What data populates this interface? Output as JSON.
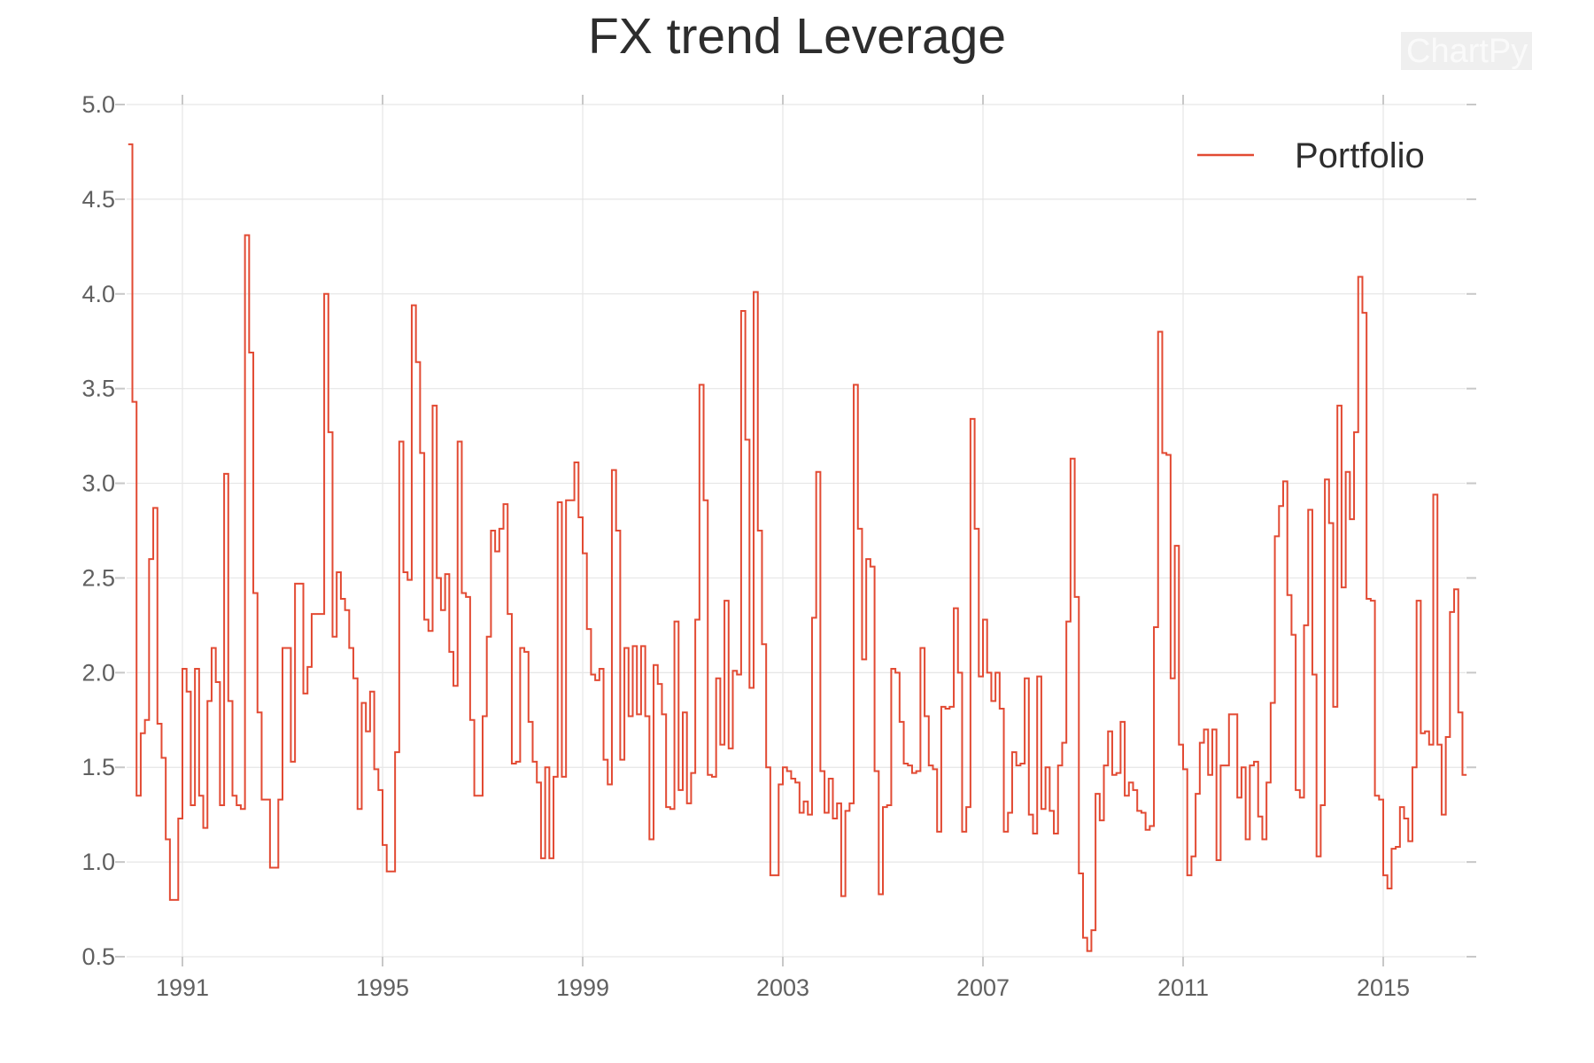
{
  "title": "FX trend Leverage",
  "watermark": "ChartPy",
  "legend": {
    "label": "Portfolio"
  },
  "colors": {
    "series_line": "#e24a33",
    "grid": "#e6e6e6",
    "tick": "#c8c8c8",
    "tick_text": "#606060",
    "title_text": "#2d2d2d",
    "watermark_box": "#efefef",
    "watermark_text": "#fafafa",
    "background": "#ffffff"
  },
  "chart_data": {
    "type": "line",
    "step_mode": "hv",
    "title": "FX trend Leverage",
    "xlabel": "",
    "ylabel": "",
    "legend_position": "upper-right",
    "grid": true,
    "series_name": "Portfolio",
    "x_start_year": 1989.9167,
    "points_per_year": 12,
    "xlim": [
      1989.85,
      2016.75
    ],
    "ylim": [
      0.5,
      5.0
    ],
    "x_ticks": [
      1991,
      1995,
      1999,
      2003,
      2007,
      2011,
      2015
    ],
    "x_tick_labels": [
      "1991",
      "1995",
      "1999",
      "2003",
      "2007",
      "2011",
      "2015"
    ],
    "y_ticks": [
      5.0,
      4.5,
      4.0,
      3.5,
      3.0,
      2.5,
      2.0,
      1.5,
      1.0,
      0.5
    ],
    "y_tick_labels": [
      "5.0",
      "4.5",
      "4.0",
      "3.5",
      "3.0",
      "2.5",
      "2.0",
      "1.5",
      "1.0",
      "0.5"
    ],
    "values": [
      4.79,
      3.43,
      1.35,
      1.68,
      1.75,
      2.6,
      2.87,
      1.73,
      1.55,
      1.12,
      0.8,
      0.8,
      1.23,
      2.02,
      1.9,
      1.3,
      2.02,
      1.35,
      1.18,
      1.85,
      2.13,
      1.95,
      1.3,
      3.05,
      1.85,
      1.35,
      1.3,
      1.28,
      4.31,
      3.69,
      2.42,
      1.79,
      1.33,
      1.33,
      0.97,
      0.97,
      1.33,
      2.13,
      2.13,
      1.53,
      2.47,
      2.47,
      1.89,
      2.03,
      2.31,
      2.31,
      2.31,
      4.0,
      3.27,
      2.19,
      2.53,
      2.39,
      2.33,
      2.13,
      1.97,
      1.28,
      1.84,
      1.69,
      1.9,
      1.49,
      1.38,
      1.09,
      0.95,
      0.95,
      1.58,
      3.22,
      2.53,
      2.49,
      3.94,
      3.64,
      3.16,
      2.28,
      2.22,
      3.41,
      2.5,
      2.33,
      2.52,
      2.11,
      1.93,
      3.22,
      2.42,
      2.4,
      1.75,
      1.35,
      1.35,
      1.77,
      2.19,
      2.75,
      2.64,
      2.76,
      2.89,
      2.31,
      1.52,
      1.53,
      2.13,
      2.11,
      1.74,
      1.53,
      1.42,
      1.02,
      1.5,
      1.02,
      1.45,
      2.9,
      1.45,
      2.91,
      2.91,
      3.11,
      2.82,
      2.63,
      2.23,
      1.99,
      1.96,
      2.02,
      1.54,
      1.41,
      3.07,
      2.75,
      1.54,
      2.13,
      1.77,
      2.14,
      1.78,
      2.14,
      1.77,
      1.12,
      2.04,
      1.94,
      1.78,
      1.29,
      1.28,
      2.27,
      1.38,
      1.79,
      1.31,
      1.47,
      2.28,
      3.52,
      2.91,
      1.46,
      1.45,
      1.97,
      1.62,
      2.38,
      1.6,
      2.01,
      1.99,
      3.91,
      3.23,
      1.92,
      4.01,
      2.75,
      2.15,
      1.5,
      0.93,
      0.93,
      1.41,
      1.5,
      1.48,
      1.44,
      1.42,
      1.26,
      1.32,
      1.25,
      2.29,
      3.06,
      1.48,
      1.26,
      1.44,
      1.23,
      1.31,
      0.82,
      1.27,
      1.31,
      3.52,
      2.76,
      2.07,
      2.6,
      2.56,
      1.48,
      0.83,
      1.29,
      1.3,
      2.02,
      2.0,
      1.74,
      1.52,
      1.51,
      1.47,
      1.48,
      2.13,
      1.77,
      1.51,
      1.49,
      1.16,
      1.82,
      1.81,
      1.82,
      2.34,
      2.0,
      1.16,
      1.29,
      3.34,
      2.76,
      1.98,
      2.28,
      2.0,
      1.85,
      2.0,
      1.81,
      1.16,
      1.26,
      1.58,
      1.51,
      1.52,
      1.97,
      1.25,
      1.15,
      1.98,
      1.28,
      1.5,
      1.27,
      1.15,
      1.51,
      1.63,
      2.27,
      3.13,
      2.4,
      0.94,
      0.6,
      0.53,
      0.64,
      1.36,
      1.22,
      1.51,
      1.69,
      1.46,
      1.47,
      1.74,
      1.35,
      1.42,
      1.38,
      1.27,
      1.26,
      1.17,
      1.19,
      2.24,
      3.8,
      3.16,
      3.15,
      1.97,
      2.67,
      1.62,
      1.49,
      0.93,
      1.03,
      1.36,
      1.63,
      1.7,
      1.46,
      1.7,
      1.01,
      1.51,
      1.51,
      1.78,
      1.78,
      1.34,
      1.5,
      1.12,
      1.51,
      1.53,
      1.24,
      1.12,
      1.42,
      1.84,
      2.72,
      2.88,
      3.01,
      2.41,
      2.2,
      1.38,
      1.34,
      2.25,
      2.86,
      1.99,
      1.03,
      1.3,
      3.02,
      2.79,
      1.82,
      3.41,
      2.45,
      3.06,
      2.81,
      3.27,
      4.09,
      3.9,
      2.39,
      2.38,
      1.35,
      1.33,
      0.93,
      0.86,
      1.07,
      1.08,
      1.29,
      1.23,
      1.11,
      1.5,
      2.38,
      1.68,
      1.69,
      1.62,
      2.94,
      1.62,
      1.25,
      1.66,
      2.32,
      2.44,
      1.79,
      1.46
    ]
  }
}
